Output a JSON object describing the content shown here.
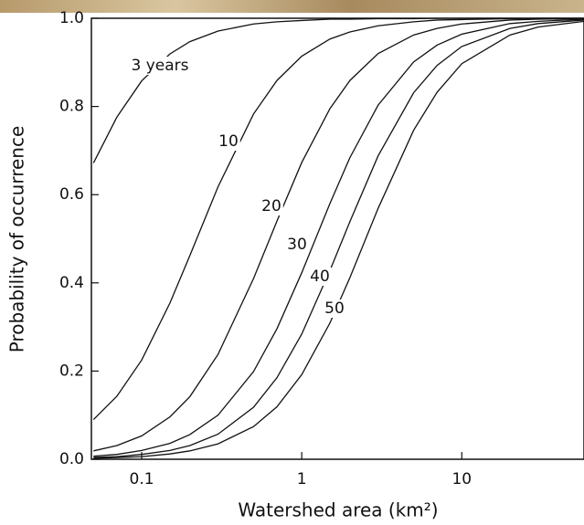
{
  "chart_data": {
    "type": "line",
    "xlabel": "Watershed area (km²)",
    "ylabel": "Probability of occurrence",
    "log_x": true,
    "x": [
      0.05,
      0.07,
      0.1,
      0.15,
      0.2,
      0.3,
      0.5,
      0.7,
      1,
      1.5,
      2,
      3,
      5,
      7,
      10,
      20,
      30,
      58
    ],
    "series": [
      {
        "name": "3 years",
        "color": "#111111",
        "values": [
          0.672,
          0.776,
          0.858,
          0.919,
          0.947,
          0.971,
          0.987,
          0.992,
          0.995,
          0.998,
          0.998,
          0.999,
          0.999,
          1.0,
          1.0,
          1.0,
          1.0,
          1.0
        ]
      },
      {
        "name": "10",
        "color": "#111111",
        "values": [
          0.09,
          0.143,
          0.225,
          0.354,
          0.462,
          0.618,
          0.783,
          0.859,
          0.914,
          0.953,
          0.969,
          0.983,
          0.992,
          0.996,
          0.997,
          0.999,
          1.0,
          1.0
        ]
      },
      {
        "name": "20",
        "color": "#111111",
        "values": [
          0.019,
          0.031,
          0.053,
          0.096,
          0.142,
          0.238,
          0.41,
          0.54,
          0.673,
          0.795,
          0.859,
          0.92,
          0.962,
          0.977,
          0.987,
          0.996,
          0.998,
          0.999
        ]
      },
      {
        "name": "30",
        "color": "#111111",
        "values": [
          0.007,
          0.011,
          0.02,
          0.036,
          0.056,
          0.1,
          0.199,
          0.296,
          0.423,
          0.58,
          0.684,
          0.803,
          0.901,
          0.939,
          0.964,
          0.988,
          0.993,
          0.998
        ]
      },
      {
        "name": "40",
        "color": "#111111",
        "values": [
          0.004,
          0.006,
          0.011,
          0.02,
          0.031,
          0.057,
          0.118,
          0.185,
          0.284,
          0.428,
          0.539,
          0.688,
          0.831,
          0.893,
          0.936,
          0.977,
          0.988,
          0.996
        ]
      },
      {
        "name": "50",
        "color": "#111111",
        "values": [
          0.002,
          0.004,
          0.006,
          0.012,
          0.019,
          0.035,
          0.074,
          0.119,
          0.192,
          0.309,
          0.412,
          0.569,
          0.746,
          0.832,
          0.897,
          0.962,
          0.98,
          0.993
        ]
      }
    ],
    "xlim": [
      0.0485,
      58
    ],
    "ylim": [
      0,
      1
    ],
    "xticks": [
      0.1,
      1,
      10
    ],
    "yticks": [
      {
        "value": 0,
        "label": "0.0"
      },
      0.2,
      0.4,
      0.6,
      0.8,
      {
        "value": 1,
        "label": "1.0"
      }
    ]
  }
}
